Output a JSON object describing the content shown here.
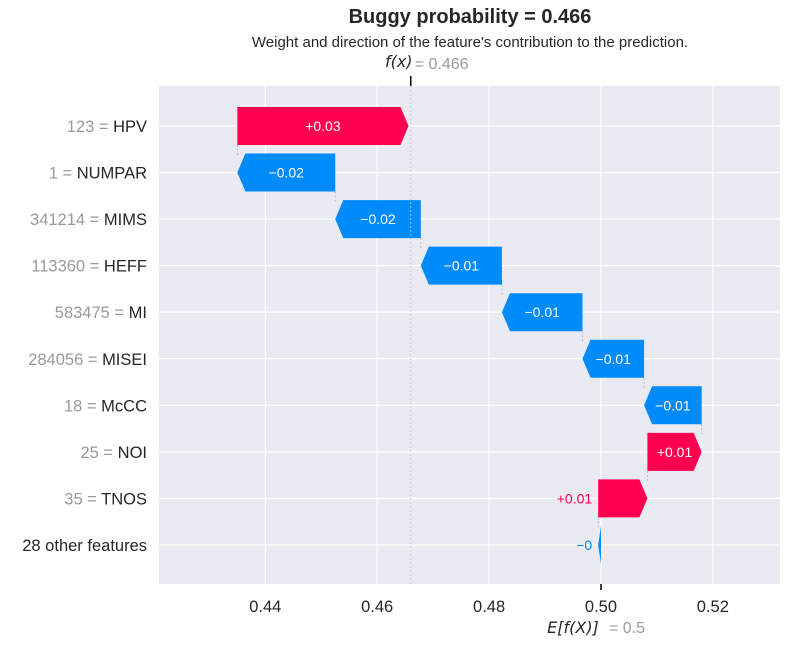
{
  "title": "Buggy probability = 0.466",
  "subtitle": "Weight and direction of the feature's contribution to the prediction.",
  "fx_label": "f(x)",
  "fx_value_text": "= 0.466",
  "efx_label": "E[f(X)]",
  "efx_value_text": "= 0.5",
  "colors": {
    "positive": "#ff0051",
    "negative": "#008bfb",
    "background": "#eaeaf2",
    "grid": "#ffffff"
  },
  "chart_data": {
    "type": "bar",
    "subtype": "waterfall",
    "xlim": [
      0.421,
      0.532
    ],
    "xticks": [
      0.44,
      0.46,
      0.48,
      0.5,
      0.52
    ],
    "xtick_labels": [
      "0.44",
      "0.46",
      "0.48",
      "0.50",
      "0.52"
    ],
    "base_value": 0.5,
    "prediction": 0.466,
    "rows": [
      {
        "value_label": "123",
        "feature": "HPV",
        "start": 0.435,
        "end": 0.4656,
        "label": "+0.03",
        "sign": "positive"
      },
      {
        "value_label": "1",
        "feature": "NUMPAR",
        "start": 0.4525,
        "end": 0.435,
        "label": "−0.02",
        "sign": "negative"
      },
      {
        "value_label": "341214",
        "feature": "MIMS",
        "start": 0.4678,
        "end": 0.4525,
        "label": "−0.02",
        "sign": "negative"
      },
      {
        "value_label": "113360",
        "feature": "HEFF",
        "start": 0.4823,
        "end": 0.4678,
        "label": "−0.01",
        "sign": "negative"
      },
      {
        "value_label": "583475",
        "feature": "MI",
        "start": 0.4967,
        "end": 0.4823,
        "label": "−0.01",
        "sign": "negative"
      },
      {
        "value_label": "284056",
        "feature": "MISEI",
        "start": 0.5077,
        "end": 0.4967,
        "label": "−0.01",
        "sign": "negative"
      },
      {
        "value_label": "18",
        "feature": "McCC",
        "start": 0.518,
        "end": 0.5077,
        "label": "−0.01",
        "sign": "negative"
      },
      {
        "value_label": "25",
        "feature": "NOI",
        "start": 0.5083,
        "end": 0.518,
        "label": "+0.01",
        "sign": "positive"
      },
      {
        "value_label": "35",
        "feature": "TNOS",
        "start": 0.4995,
        "end": 0.5083,
        "label": "+0.01",
        "sign": "positive"
      },
      {
        "value_label": "",
        "feature": "28 other features",
        "start": 0.5,
        "end": 0.4995,
        "label": "−0",
        "sign": "negative"
      }
    ]
  }
}
